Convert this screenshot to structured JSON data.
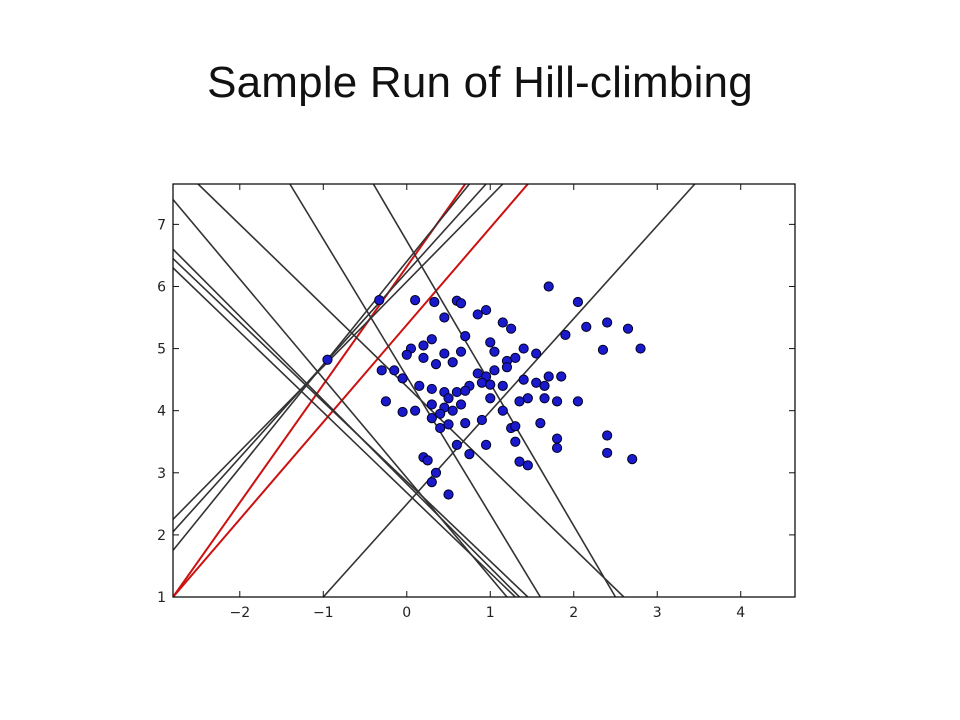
{
  "slide": {
    "title": "Sample Run of Hill-climbing"
  },
  "chart_data": {
    "type": "scatter",
    "title": "",
    "xlabel": "",
    "ylabel": "",
    "xlim": [
      -2.8,
      4.65
    ],
    "ylim": [
      1.0,
      7.65
    ],
    "grid": false,
    "xticks": [
      -2,
      -1,
      0,
      1,
      2,
      3,
      4
    ],
    "yticks": [
      1,
      2,
      3,
      4,
      5,
      6,
      7
    ],
    "xtick_labels": [
      "−2",
      "−1",
      "0",
      "1",
      "2",
      "3",
      "4"
    ],
    "ytick_labels": [
      "1",
      "2",
      "3",
      "4",
      "5",
      "6",
      "7"
    ],
    "colors": {
      "points": "#1a1acc",
      "point_edge": "#000022",
      "lines": "#333333",
      "highlight_lines": "#cc1111"
    },
    "points": [
      [
        -0.33,
        5.78
      ],
      [
        0.1,
        5.78
      ],
      [
        0.33,
        5.75
      ],
      [
        0.6,
        5.77
      ],
      [
        0.65,
        5.73
      ],
      [
        0.95,
        5.62
      ],
      [
        0.85,
        5.55
      ],
      [
        1.15,
        5.42
      ],
      [
        1.25,
        5.32
      ],
      [
        0.45,
        5.5
      ],
      [
        0.7,
        5.2
      ],
      [
        1.0,
        5.1
      ],
      [
        0.3,
        5.15
      ],
      [
        0.2,
        5.05
      ],
      [
        0.05,
        5.0
      ],
      [
        0.0,
        4.9
      ],
      [
        0.2,
        4.85
      ],
      [
        0.45,
        4.92
      ],
      [
        0.65,
        4.95
      ],
      [
        1.05,
        4.95
      ],
      [
        1.2,
        4.8
      ],
      [
        1.4,
        5.0
      ],
      [
        1.55,
        4.92
      ],
      [
        1.3,
        4.85
      ],
      [
        0.35,
        4.75
      ],
      [
        0.55,
        4.78
      ],
      [
        0.85,
        4.6
      ],
      [
        0.95,
        4.55
      ],
      [
        1.05,
        4.65
      ],
      [
        1.2,
        4.7
      ],
      [
        1.4,
        4.5
      ],
      [
        1.55,
        4.45
      ],
      [
        1.7,
        4.55
      ],
      [
        1.85,
        4.55
      ],
      [
        1.65,
        4.4
      ],
      [
        -0.3,
        4.65
      ],
      [
        -0.15,
        4.65
      ],
      [
        -0.05,
        4.52
      ],
      [
        0.15,
        4.4
      ],
      [
        0.3,
        4.35
      ],
      [
        0.45,
        4.3
      ],
      [
        0.5,
        4.2
      ],
      [
        0.6,
        4.3
      ],
      [
        0.75,
        4.4
      ],
      [
        0.7,
        4.32
      ],
      [
        0.9,
        4.45
      ],
      [
        1.0,
        4.42
      ],
      [
        1.15,
        4.4
      ],
      [
        -0.25,
        4.15
      ],
      [
        -0.05,
        3.98
      ],
      [
        0.1,
        4.0
      ],
      [
        0.3,
        4.1
      ],
      [
        0.45,
        4.05
      ],
      [
        0.55,
        4.0
      ],
      [
        0.65,
        4.1
      ],
      [
        0.4,
        3.95
      ],
      [
        0.3,
        3.88
      ],
      [
        0.5,
        3.78
      ],
      [
        0.4,
        3.72
      ],
      [
        0.7,
        3.8
      ],
      [
        0.9,
        3.85
      ],
      [
        1.0,
        4.2
      ],
      [
        1.15,
        4.0
      ],
      [
        1.25,
        3.72
      ],
      [
        1.45,
        4.2
      ],
      [
        1.65,
        4.2
      ],
      [
        1.8,
        4.15
      ],
      [
        2.05,
        4.15
      ],
      [
        1.6,
        3.8
      ],
      [
        1.35,
        4.15
      ],
      [
        0.6,
        3.45
      ],
      [
        0.75,
        3.3
      ],
      [
        0.95,
        3.45
      ],
      [
        1.3,
        3.5
      ],
      [
        1.3,
        3.75
      ],
      [
        0.2,
        3.25
      ],
      [
        0.25,
        3.2
      ],
      [
        0.35,
        3.0
      ],
      [
        0.3,
        2.85
      ],
      [
        0.5,
        2.65
      ],
      [
        1.35,
        3.18
      ],
      [
        1.45,
        3.12
      ],
      [
        1.8,
        3.4
      ],
      [
        1.8,
        3.55
      ],
      [
        1.7,
        6.0
      ],
      [
        2.05,
        5.75
      ],
      [
        2.15,
        5.35
      ],
      [
        1.9,
        5.22
      ],
      [
        2.4,
        5.42
      ],
      [
        2.65,
        5.32
      ],
      [
        2.35,
        4.98
      ],
      [
        2.8,
        5.0
      ],
      [
        2.4,
        3.6
      ],
      [
        2.4,
        3.32
      ],
      [
        2.7,
        3.22
      ],
      [
        -0.95,
        4.82
      ]
    ],
    "lines": [
      {
        "x": [
          -2.8,
          0.7
        ],
        "y": [
          1.0,
          7.65
        ],
        "color": "red"
      },
      {
        "x": [
          -2.8,
          1.45
        ],
        "y": [
          1.0,
          7.65
        ],
        "color": "red"
      },
      {
        "x": [
          -2.8,
          0.75
        ],
        "y": [
          1.75,
          7.65
        ],
        "color": "gray"
      },
      {
        "x": [
          -2.8,
          0.95
        ],
        "y": [
          2.05,
          7.65
        ],
        "color": "gray"
      },
      {
        "x": [
          -2.8,
          1.15
        ],
        "y": [
          2.25,
          7.65
        ],
        "color": "gray"
      },
      {
        "x": [
          -1.0,
          3.45
        ],
        "y": [
          1.0,
          7.65
        ],
        "color": "gray"
      },
      {
        "x": [
          -2.8,
          1.2
        ],
        "y": [
          7.4,
          1.0
        ],
        "color": "gray"
      },
      {
        "x": [
          -2.8,
          1.35
        ],
        "y": [
          6.6,
          1.0
        ],
        "color": "gray"
      },
      {
        "x": [
          -2.8,
          1.45
        ],
        "y": [
          6.45,
          1.0
        ],
        "color": "gray"
      },
      {
        "x": [
          -2.8,
          1.3
        ],
        "y": [
          6.3,
          1.0
        ],
        "color": "gray"
      },
      {
        "x": [
          -2.5,
          2.6
        ],
        "y": [
          7.65,
          1.0
        ],
        "color": "gray"
      },
      {
        "x": [
          -1.4,
          1.6
        ],
        "y": [
          7.65,
          1.0
        ],
        "color": "gray"
      },
      {
        "x": [
          -0.4,
          2.5
        ],
        "y": [
          7.65,
          1.0
        ],
        "color": "gray"
      }
    ]
  }
}
